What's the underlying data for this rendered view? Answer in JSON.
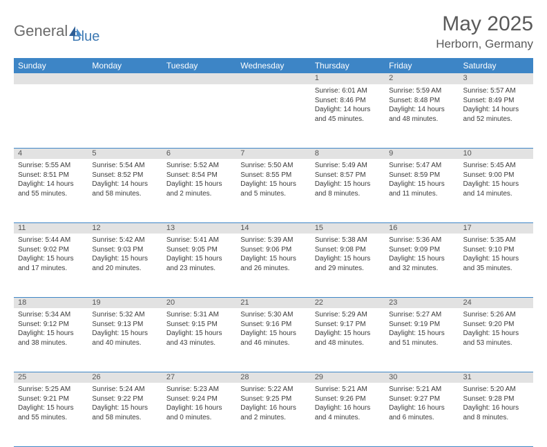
{
  "brand": {
    "part1": "General",
    "part2": "Blue"
  },
  "title": "May 2025",
  "location": "Herborn, Germany",
  "colors": {
    "header_bg": "#3d85c6",
    "header_fg": "#ffffff",
    "daynum_bg": "#e2e2e2",
    "rule": "#3d85c6",
    "text": "#3a3a3a",
    "title_fg": "#5a5a5a",
    "logo_gray": "#6a6a6a",
    "logo_blue": "#3d79b3"
  },
  "daysOfWeek": [
    "Sunday",
    "Monday",
    "Tuesday",
    "Wednesday",
    "Thursday",
    "Friday",
    "Saturday"
  ],
  "weeks": [
    [
      {
        "n": "",
        "lines": []
      },
      {
        "n": "",
        "lines": []
      },
      {
        "n": "",
        "lines": []
      },
      {
        "n": "",
        "lines": []
      },
      {
        "n": "1",
        "lines": [
          "Sunrise: 6:01 AM",
          "Sunset: 8:46 PM",
          "Daylight: 14 hours",
          "and 45 minutes."
        ]
      },
      {
        "n": "2",
        "lines": [
          "Sunrise: 5:59 AM",
          "Sunset: 8:48 PM",
          "Daylight: 14 hours",
          "and 48 minutes."
        ]
      },
      {
        "n": "3",
        "lines": [
          "Sunrise: 5:57 AM",
          "Sunset: 8:49 PM",
          "Daylight: 14 hours",
          "and 52 minutes."
        ]
      }
    ],
    [
      {
        "n": "4",
        "lines": [
          "Sunrise: 5:55 AM",
          "Sunset: 8:51 PM",
          "Daylight: 14 hours",
          "and 55 minutes."
        ]
      },
      {
        "n": "5",
        "lines": [
          "Sunrise: 5:54 AM",
          "Sunset: 8:52 PM",
          "Daylight: 14 hours",
          "and 58 minutes."
        ]
      },
      {
        "n": "6",
        "lines": [
          "Sunrise: 5:52 AM",
          "Sunset: 8:54 PM",
          "Daylight: 15 hours",
          "and 2 minutes."
        ]
      },
      {
        "n": "7",
        "lines": [
          "Sunrise: 5:50 AM",
          "Sunset: 8:55 PM",
          "Daylight: 15 hours",
          "and 5 minutes."
        ]
      },
      {
        "n": "8",
        "lines": [
          "Sunrise: 5:49 AM",
          "Sunset: 8:57 PM",
          "Daylight: 15 hours",
          "and 8 minutes."
        ]
      },
      {
        "n": "9",
        "lines": [
          "Sunrise: 5:47 AM",
          "Sunset: 8:59 PM",
          "Daylight: 15 hours",
          "and 11 minutes."
        ]
      },
      {
        "n": "10",
        "lines": [
          "Sunrise: 5:45 AM",
          "Sunset: 9:00 PM",
          "Daylight: 15 hours",
          "and 14 minutes."
        ]
      }
    ],
    [
      {
        "n": "11",
        "lines": [
          "Sunrise: 5:44 AM",
          "Sunset: 9:02 PM",
          "Daylight: 15 hours",
          "and 17 minutes."
        ]
      },
      {
        "n": "12",
        "lines": [
          "Sunrise: 5:42 AM",
          "Sunset: 9:03 PM",
          "Daylight: 15 hours",
          "and 20 minutes."
        ]
      },
      {
        "n": "13",
        "lines": [
          "Sunrise: 5:41 AM",
          "Sunset: 9:05 PM",
          "Daylight: 15 hours",
          "and 23 minutes."
        ]
      },
      {
        "n": "14",
        "lines": [
          "Sunrise: 5:39 AM",
          "Sunset: 9:06 PM",
          "Daylight: 15 hours",
          "and 26 minutes."
        ]
      },
      {
        "n": "15",
        "lines": [
          "Sunrise: 5:38 AM",
          "Sunset: 9:08 PM",
          "Daylight: 15 hours",
          "and 29 minutes."
        ]
      },
      {
        "n": "16",
        "lines": [
          "Sunrise: 5:36 AM",
          "Sunset: 9:09 PM",
          "Daylight: 15 hours",
          "and 32 minutes."
        ]
      },
      {
        "n": "17",
        "lines": [
          "Sunrise: 5:35 AM",
          "Sunset: 9:10 PM",
          "Daylight: 15 hours",
          "and 35 minutes."
        ]
      }
    ],
    [
      {
        "n": "18",
        "lines": [
          "Sunrise: 5:34 AM",
          "Sunset: 9:12 PM",
          "Daylight: 15 hours",
          "and 38 minutes."
        ]
      },
      {
        "n": "19",
        "lines": [
          "Sunrise: 5:32 AM",
          "Sunset: 9:13 PM",
          "Daylight: 15 hours",
          "and 40 minutes."
        ]
      },
      {
        "n": "20",
        "lines": [
          "Sunrise: 5:31 AM",
          "Sunset: 9:15 PM",
          "Daylight: 15 hours",
          "and 43 minutes."
        ]
      },
      {
        "n": "21",
        "lines": [
          "Sunrise: 5:30 AM",
          "Sunset: 9:16 PM",
          "Daylight: 15 hours",
          "and 46 minutes."
        ]
      },
      {
        "n": "22",
        "lines": [
          "Sunrise: 5:29 AM",
          "Sunset: 9:17 PM",
          "Daylight: 15 hours",
          "and 48 minutes."
        ]
      },
      {
        "n": "23",
        "lines": [
          "Sunrise: 5:27 AM",
          "Sunset: 9:19 PM",
          "Daylight: 15 hours",
          "and 51 minutes."
        ]
      },
      {
        "n": "24",
        "lines": [
          "Sunrise: 5:26 AM",
          "Sunset: 9:20 PM",
          "Daylight: 15 hours",
          "and 53 minutes."
        ]
      }
    ],
    [
      {
        "n": "25",
        "lines": [
          "Sunrise: 5:25 AM",
          "Sunset: 9:21 PM",
          "Daylight: 15 hours",
          "and 55 minutes."
        ]
      },
      {
        "n": "26",
        "lines": [
          "Sunrise: 5:24 AM",
          "Sunset: 9:22 PM",
          "Daylight: 15 hours",
          "and 58 minutes."
        ]
      },
      {
        "n": "27",
        "lines": [
          "Sunrise: 5:23 AM",
          "Sunset: 9:24 PM",
          "Daylight: 16 hours",
          "and 0 minutes."
        ]
      },
      {
        "n": "28",
        "lines": [
          "Sunrise: 5:22 AM",
          "Sunset: 9:25 PM",
          "Daylight: 16 hours",
          "and 2 minutes."
        ]
      },
      {
        "n": "29",
        "lines": [
          "Sunrise: 5:21 AM",
          "Sunset: 9:26 PM",
          "Daylight: 16 hours",
          "and 4 minutes."
        ]
      },
      {
        "n": "30",
        "lines": [
          "Sunrise: 5:21 AM",
          "Sunset: 9:27 PM",
          "Daylight: 16 hours",
          "and 6 minutes."
        ]
      },
      {
        "n": "31",
        "lines": [
          "Sunrise: 5:20 AM",
          "Sunset: 9:28 PM",
          "Daylight: 16 hours",
          "and 8 minutes."
        ]
      }
    ]
  ]
}
